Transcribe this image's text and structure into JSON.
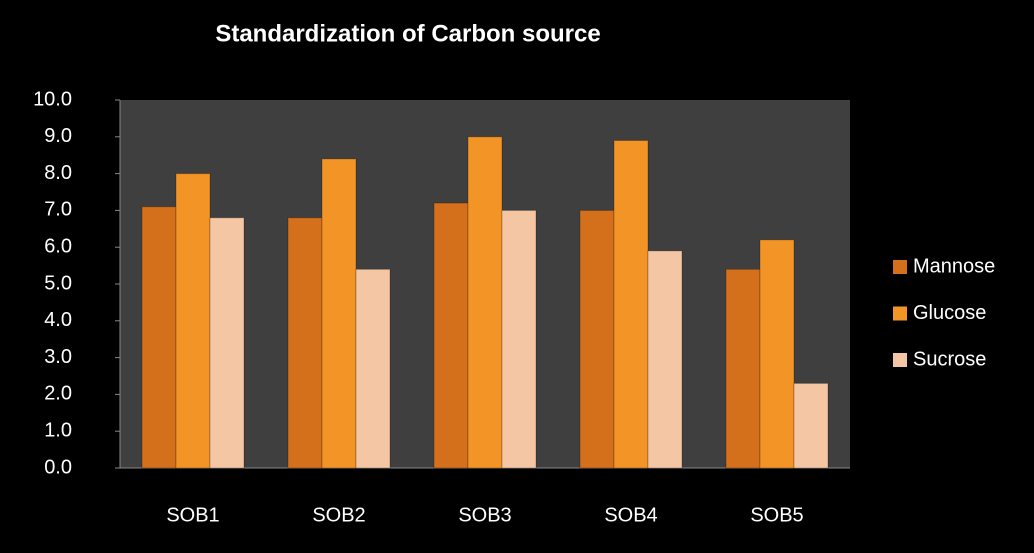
{
  "chart_data": {
    "type": "bar",
    "title": "Standardization of Carbon source",
    "categories": [
      "SOB1",
      "SOB2",
      "SOB3",
      "SOB4",
      "SOB5"
    ],
    "series": [
      {
        "name": "Mannose",
        "color": "#d46f1c",
        "values": [
          7.1,
          6.8,
          7.2,
          7.0,
          5.4
        ]
      },
      {
        "name": "Glucose",
        "color": "#f39426",
        "values": [
          8.0,
          8.4,
          9.0,
          8.9,
          6.2
        ]
      },
      {
        "name": "Sucrose",
        "color": "#f4c6a4",
        "values": [
          6.8,
          5.4,
          7.0,
          5.9,
          2.3
        ]
      }
    ],
    "ylim": [
      0,
      10
    ],
    "yticks": [
      {
        "value": 0,
        "label": "0.0"
      },
      {
        "value": 1,
        "label": "1.0"
      },
      {
        "value": 2,
        "label": "2.0"
      },
      {
        "value": 3,
        "label": "3.0"
      },
      {
        "value": 4,
        "label": "4.0"
      },
      {
        "value": 5,
        "label": "5.0"
      },
      {
        "value": 6,
        "label": "6.0"
      },
      {
        "value": 7,
        "label": "7.0"
      },
      {
        "value": 8,
        "label": "8.0"
      },
      {
        "value": 9,
        "label": "9.0"
      },
      {
        "value": 10,
        "label": "10.0"
      }
    ],
    "legend": "right"
  }
}
